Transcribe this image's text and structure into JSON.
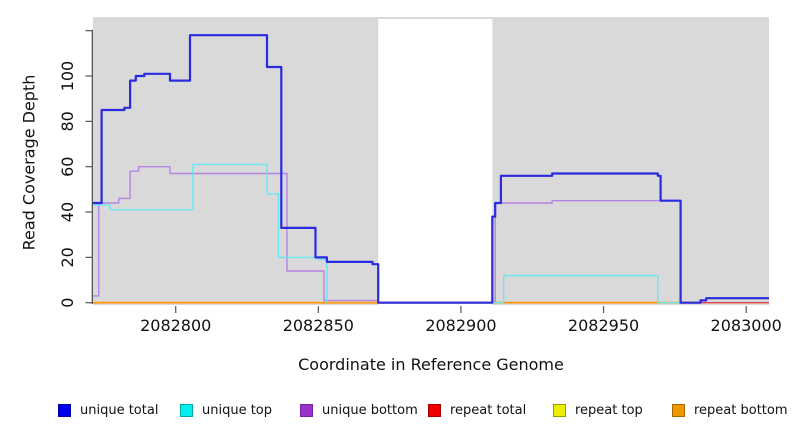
{
  "figure": {
    "kind": "read coverage step plot"
  },
  "chart_data": {
    "type": "line",
    "subtype": "step",
    "title": "",
    "xlabel": "Coordinate in Reference Genome",
    "ylabel": "Read Coverage Depth",
    "x_range": [
      2082771,
      2083008
    ],
    "y_range": [
      0,
      126
    ],
    "grid": false,
    "plot_bg": "#D9D9D9",
    "uncovered_region": {
      "from": 2082871,
      "to": 2082911,
      "color": "#FFFFFF"
    },
    "x_ticks": [
      {
        "v": 2082800,
        "label": "2082800"
      },
      {
        "v": 2082850,
        "label": "2082850"
      },
      {
        "v": 2082900,
        "label": "2082900"
      },
      {
        "v": 2082950,
        "label": "2082950"
      },
      {
        "v": 2083000,
        "label": "2083000"
      }
    ],
    "y_ticks": [
      {
        "v": 0,
        "label": "0"
      },
      {
        "v": 20,
        "label": "20"
      },
      {
        "v": 40,
        "label": "40"
      },
      {
        "v": 60,
        "label": "60"
      },
      {
        "v": 80,
        "label": "80"
      },
      {
        "v": 100,
        "label": "100"
      },
      {
        "v": 120,
        "label": ""
      }
    ],
    "legend_position": "bottom",
    "series": [
      {
        "name": "unique total",
        "color": "#0000EE",
        "edge": "#0000AA",
        "line_color": "#2A2ADF",
        "line_width": 2.2,
        "z": 6,
        "steps": [
          [
            [
              2082771,
              44
            ],
            [
              2082774,
              85
            ],
            [
              2082782,
              86
            ],
            [
              2082784,
              98
            ],
            [
              2082786,
              100
            ],
            [
              2082789,
              101
            ],
            [
              2082798,
              98
            ],
            [
              2082805,
              118
            ],
            [
              2082832,
              104
            ],
            [
              2082837,
              33
            ],
            [
              2082849,
              20
            ],
            [
              2082853,
              18
            ],
            [
              2082869,
              17
            ],
            [
              2082871,
              0
            ],
            [
              2082911,
              38
            ],
            [
              2082912,
              44
            ],
            [
              2082914,
              56
            ],
            [
              2082932,
              57
            ],
            [
              2082969,
              56
            ],
            [
              2082970,
              45
            ],
            [
              2082977,
              0
            ],
            [
              2082984,
              1
            ],
            [
              2082986,
              2
            ],
            [
              2083008,
              2
            ]
          ]
        ]
      },
      {
        "name": "unique top",
        "color": "#00EEEE",
        "edge": "#00AAAA",
        "line_color": "#6AE7EF",
        "line_width": 1.4,
        "z": 5,
        "steps": [
          [
            [
              2082771,
              43
            ],
            [
              2082777,
              41
            ],
            [
              2082806,
              61
            ],
            [
              2082832,
              48
            ],
            [
              2082836,
              20
            ],
            [
              2082850,
              19
            ],
            [
              2082853,
              0
            ]
          ],
          [
            [
              2082911,
              0
            ],
            [
              2082915,
              12
            ],
            [
              2082969,
              0
            ],
            [
              2082977,
              0
            ]
          ]
        ]
      },
      {
        "name": "unique bottom",
        "color": "#9933CC",
        "edge": "#7722AA",
        "line_color": "#B584E4",
        "line_width": 1.4,
        "z": 4,
        "steps": [
          [
            [
              2082771,
              3
            ],
            [
              2082773,
              44
            ],
            [
              2082780,
              46
            ],
            [
              2082784,
              58
            ],
            [
              2082787,
              60
            ],
            [
              2082798,
              57
            ],
            [
              2082839,
              14
            ],
            [
              2082852,
              1
            ],
            [
              2082871,
              0
            ]
          ],
          [
            [
              2082912,
              0
            ],
            [
              2082912,
              44
            ],
            [
              2082932,
              45
            ],
            [
              2082977,
              0
            ]
          ]
        ]
      },
      {
        "name": "repeat total",
        "color": "#EE0000",
        "edge": "#AA0000",
        "line_color": "#DC4058",
        "line_width": 1.4,
        "z": 2,
        "steps": [
          [
            [
              2082771,
              0
            ],
            [
              2083008,
              0
            ]
          ]
        ]
      },
      {
        "name": "repeat top",
        "color": "#EEEE00",
        "edge": "#999900",
        "line_color": "#EEEE00",
        "line_width": 1.4,
        "z": 1,
        "steps": [
          [
            [
              2082771,
              0
            ],
            [
              2083008,
              0
            ]
          ]
        ]
      },
      {
        "name": "repeat bottom",
        "color": "#EE9900",
        "edge": "#AA6600",
        "line_color": "#FF9912",
        "line_width": 1.8,
        "z": 3,
        "steps": [
          [
            [
              2082771,
              0
            ],
            [
              2082984,
              0
            ]
          ]
        ]
      }
    ]
  }
}
